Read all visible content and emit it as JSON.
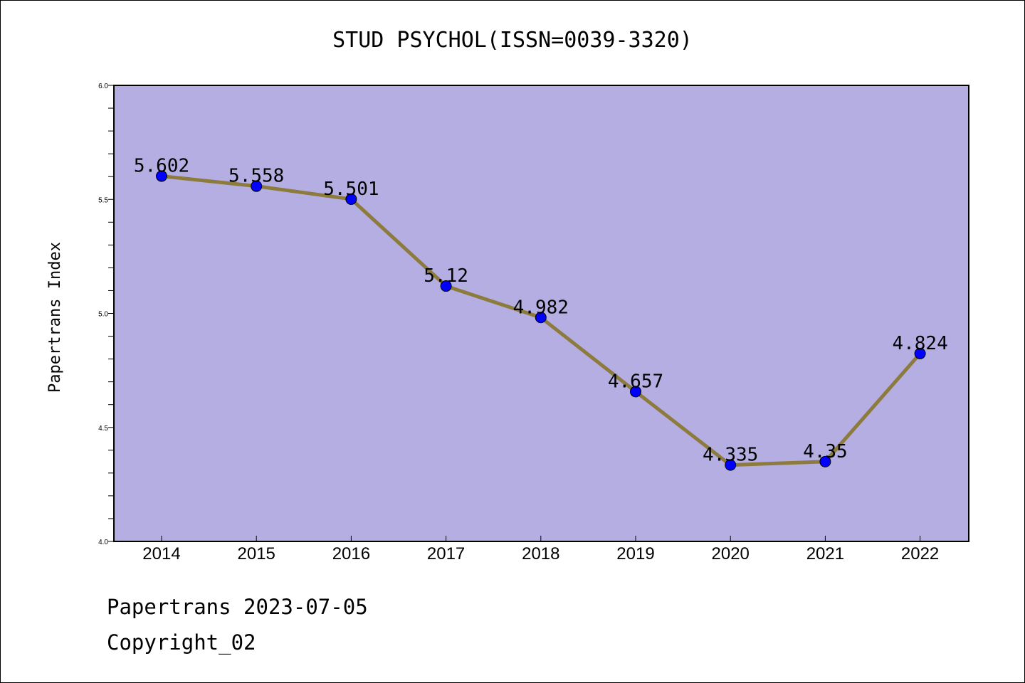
{
  "chart_data": {
    "type": "line",
    "title": "STUD PSYCHOL(ISSN=0039-3320)",
    "ylabel": "Papertrans Index",
    "xlabel": "",
    "categories": [
      "2014",
      "2015",
      "2016",
      "2017",
      "2018",
      "2019",
      "2020",
      "2021",
      "2022"
    ],
    "values": [
      5.602,
      5.558,
      5.501,
      5.12,
      4.982,
      4.657,
      4.335,
      4.35,
      4.824
    ],
    "value_labels": [
      "5.602",
      "5.558",
      "5.501",
      "5.12",
      "4.982",
      "4.657",
      "4.335",
      "4.35",
      "4.824"
    ],
    "ylim": [
      4.0,
      6.0
    ],
    "yticks": [
      "4.0",
      "4.5",
      "5.0",
      "5.5",
      "6.0"
    ],
    "grid": false,
    "colors": {
      "plot_background": "#b4aee2",
      "line": "#8c7b3c",
      "marker": "#0000ff"
    }
  },
  "footer": {
    "line1": "Papertrans 2023-07-05",
    "line2": "Copyright_02"
  }
}
